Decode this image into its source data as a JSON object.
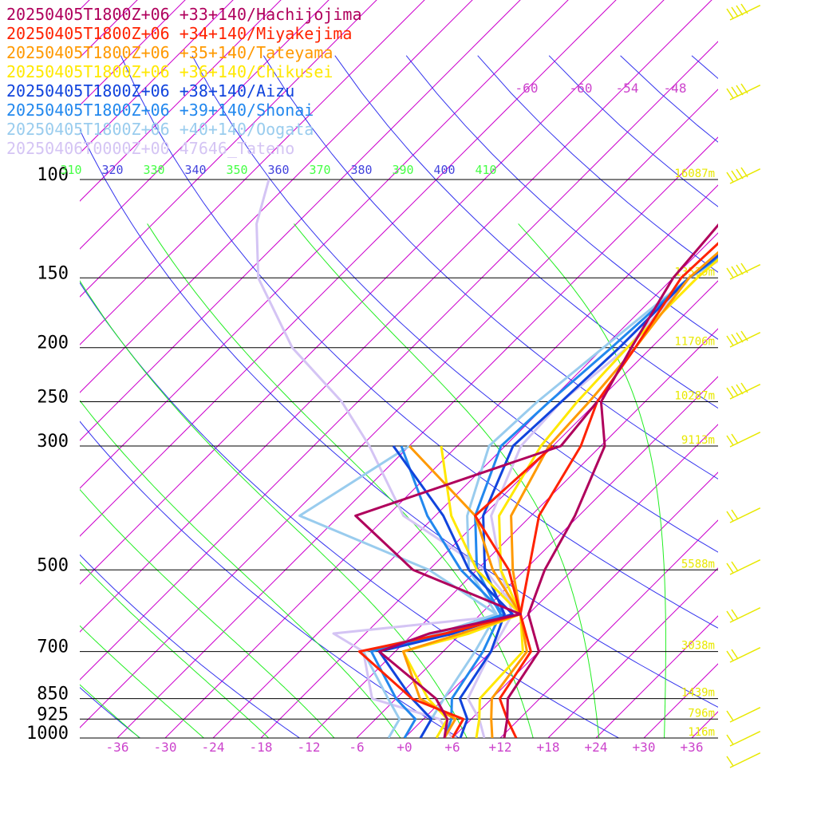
{
  "chart_data": {
    "type": "line",
    "title": "",
    "xlabel": "",
    "ylabel": "",
    "xlim": [
      -40,
      40
    ],
    "ylim": [
      1000,
      100
    ],
    "x_ticks": [
      "-36",
      "-30",
      "-24",
      "-18",
      "-12",
      "-6",
      "+0",
      "+6",
      "+12",
      "+18",
      "+24",
      "+30",
      "+36"
    ],
    "x_tick_values": [
      -36,
      -30,
      -24,
      -18,
      -12,
      -6,
      0,
      6,
      12,
      18,
      24,
      30,
      36
    ],
    "pressure_levels": [
      {
        "p": 100,
        "label": "100",
        "height": "16087m"
      },
      {
        "p": 150,
        "label": "150",
        "height": "13539m"
      },
      {
        "p": 200,
        "label": "200",
        "height": "11706m"
      },
      {
        "p": 250,
        "label": "250",
        "height": "10287m"
      },
      {
        "p": 300,
        "label": "300",
        "height": "9113m"
      },
      {
        "p": 500,
        "label": "500",
        "height": "5588m"
      },
      {
        "p": 700,
        "label": "700",
        "height": "3038m"
      },
      {
        "p": 850,
        "label": "850",
        "height": "1439m"
      },
      {
        "p": 925,
        "label": "925",
        "height": "796m"
      },
      {
        "p": 1000,
        "label": "1000",
        "height": "116m"
      }
    ],
    "upper_temp_labels": [
      "-60",
      "-60",
      "-54",
      "-48"
    ],
    "theta_labels": [
      {
        "t": "310",
        "c": "#44ff44"
      },
      {
        "t": "320",
        "c": "#4444dd"
      },
      {
        "t": "330",
        "c": "#44ff44"
      },
      {
        "t": "340",
        "c": "#4444dd"
      },
      {
        "t": "350",
        "c": "#44ff44"
      },
      {
        "t": "360",
        "c": "#4444dd"
      },
      {
        "t": "370",
        "c": "#44ff44"
      },
      {
        "t": "380",
        "c": "#4444dd"
      },
      {
        "t": "390",
        "c": "#44ff44"
      },
      {
        "t": "400",
        "c": "#4444dd"
      },
      {
        "t": "410",
        "c": "#44ff44"
      }
    ],
    "colors": {
      "isotherm": "#cc00cc",
      "dry_adiabat": "#3333ee",
      "moist_adiabat": "#22ee22",
      "isobar": "#000000",
      "height_label": "#e8e800",
      "tick_label": "#cc44cc",
      "wind_barb": "#e8e800"
    },
    "series": [
      {
        "name": "20250405T1800Z+06 +33+140/Hachijojima",
        "color": "#b0005c",
        "temp": [
          [
            1000,
            12.5
          ],
          [
            925,
            10.5
          ],
          [
            850,
            8
          ],
          [
            700,
            6
          ],
          [
            600,
            0
          ],
          [
            500,
            -3.5
          ],
          [
            400,
            -6.5
          ],
          [
            300,
            -11.5
          ],
          [
            250,
            -17.5
          ],
          [
            200,
            -20.5
          ],
          [
            150,
            -24
          ],
          [
            120,
            -25
          ],
          [
            100,
            -22
          ],
          [
            80,
            -16
          ],
          [
            60,
            -6
          ],
          [
            40,
            5
          ],
          [
            25,
            12
          ]
        ],
        "dew": [
          [
            1000,
            5
          ],
          [
            925,
            3
          ],
          [
            850,
            -1
          ],
          [
            700,
            -14
          ],
          [
            650,
            -10
          ],
          [
            600,
            -1
          ],
          [
            500,
            -20
          ],
          [
            400,
            -34
          ],
          [
            300,
            -17
          ],
          [
            250,
            -18
          ]
        ]
      },
      {
        "name": "20250405T1800Z+06 +34+140/Miyakejima",
        "color": "#ff2200",
        "temp": [
          [
            1000,
            14
          ],
          [
            925,
            10.5
          ],
          [
            850,
            7
          ],
          [
            700,
            5
          ],
          [
            600,
            -1
          ],
          [
            500,
            -5.5
          ],
          [
            400,
            -11
          ],
          [
            300,
            -14.5
          ],
          [
            250,
            -18
          ],
          [
            200,
            -20
          ],
          [
            150,
            -23
          ],
          [
            120,
            -22.5
          ],
          [
            100,
            -20
          ],
          [
            80,
            -13
          ],
          [
            60,
            -3
          ],
          [
            40,
            8
          ],
          [
            25,
            14
          ]
        ],
        "dew": [
          [
            1000,
            6
          ],
          [
            925,
            5
          ],
          [
            850,
            -4
          ],
          [
            700,
            -16.5
          ],
          [
            650,
            -8
          ],
          [
            600,
            -1
          ],
          [
            500,
            -8
          ],
          [
            400,
            -19
          ],
          [
            300,
            -18
          ]
        ]
      },
      {
        "name": "20250405T1800Z+06 +35+140/Tateyama",
        "color": "#ff9900",
        "temp": [
          [
            1000,
            11
          ],
          [
            925,
            8.5
          ],
          [
            850,
            6
          ],
          [
            700,
            4.5
          ],
          [
            600,
            -1
          ],
          [
            500,
            -7.5
          ],
          [
            400,
            -14.5
          ],
          [
            300,
            -18.5
          ],
          [
            250,
            -19
          ],
          [
            200,
            -20
          ],
          [
            150,
            -22
          ],
          [
            120,
            -21
          ],
          [
            100,
            -18
          ],
          [
            80,
            -11
          ],
          [
            60,
            -1
          ],
          [
            40,
            10
          ],
          [
            25,
            15
          ]
        ],
        "dew": [
          [
            1000,
            5
          ],
          [
            925,
            4
          ],
          [
            850,
            -3
          ],
          [
            700,
            -11
          ],
          [
            650,
            -6
          ],
          [
            600,
            -1
          ],
          [
            500,
            -10
          ],
          [
            400,
            -19
          ],
          [
            300,
            -36
          ]
        ]
      },
      {
        "name": "20250405T1800Z+06 +36+140/Chikusei",
        "color": "#ffe800",
        "temp": [
          [
            1000,
            9
          ],
          [
            925,
            7
          ],
          [
            850,
            4.5
          ],
          [
            700,
            4
          ],
          [
            600,
            -1
          ],
          [
            500,
            -9
          ],
          [
            400,
            -16
          ],
          [
            300,
            -19.5
          ],
          [
            250,
            -20.5
          ],
          [
            200,
            -21
          ],
          [
            150,
            -21
          ],
          [
            120,
            -20
          ],
          [
            100,
            -17
          ],
          [
            80,
            -9
          ],
          [
            60,
            1
          ],
          [
            40,
            12
          ],
          [
            25,
            16
          ]
        ],
        "dew": [
          [
            1000,
            4
          ],
          [
            925,
            3
          ],
          [
            850,
            -2
          ],
          [
            700,
            -11
          ],
          [
            650,
            -5
          ],
          [
            600,
            -1
          ],
          [
            500,
            -12
          ],
          [
            400,
            -22
          ],
          [
            300,
            -32
          ]
        ]
      },
      {
        "name": "20250405T1800Z+06 +38+140/Aizu",
        "color": "#1144dd",
        "temp": [
          [
            1000,
            7
          ],
          [
            925,
            5.5
          ],
          [
            850,
            2
          ],
          [
            700,
            0
          ],
          [
            600,
            -3
          ],
          [
            500,
            -11
          ],
          [
            400,
            -18
          ],
          [
            300,
            -23
          ],
          [
            250,
            -22.5
          ],
          [
            200,
            -22
          ],
          [
            150,
            -22
          ],
          [
            120,
            -20
          ],
          [
            100,
            -17
          ],
          [
            80,
            -8
          ],
          [
            60,
            2
          ],
          [
            40,
            13
          ],
          [
            25,
            17
          ]
        ],
        "dew": [
          [
            1000,
            2
          ],
          [
            925,
            1
          ],
          [
            850,
            -4
          ],
          [
            700,
            -14
          ],
          [
            650,
            -7
          ],
          [
            600,
            -2
          ],
          [
            500,
            -13
          ],
          [
            400,
            -23
          ],
          [
            300,
            -38
          ]
        ]
      },
      {
        "name": "20250405T1800Z+06 +39+140/Shonai",
        "color": "#2288ee",
        "temp": [
          [
            1000,
            5
          ],
          [
            925,
            3.5
          ],
          [
            850,
            1
          ],
          [
            700,
            -1
          ],
          [
            600,
            -3.5
          ],
          [
            500,
            -12
          ],
          [
            400,
            -19
          ],
          [
            300,
            -24.5
          ],
          [
            250,
            -24
          ],
          [
            200,
            -23
          ],
          [
            150,
            -22
          ],
          [
            120,
            -19
          ],
          [
            100,
            -16
          ],
          [
            80,
            -7
          ],
          [
            60,
            3
          ],
          [
            40,
            14
          ],
          [
            25,
            18
          ]
        ],
        "dew": [
          [
            1000,
            0
          ],
          [
            925,
            -1
          ],
          [
            850,
            -6
          ],
          [
            700,
            -15
          ],
          [
            650,
            -8
          ],
          [
            600,
            -3
          ],
          [
            500,
            -14
          ],
          [
            400,
            -25
          ],
          [
            300,
            -37
          ]
        ]
      },
      {
        "name": "20250405T1800Z+06 +40+140/Oogata",
        "color": "#99ccee",
        "temp": [
          [
            1000,
            2
          ],
          [
            925,
            1
          ],
          [
            850,
            0
          ],
          [
            700,
            -2
          ],
          [
            600,
            -4
          ],
          [
            500,
            -13
          ],
          [
            400,
            -20
          ],
          [
            300,
            -26
          ],
          [
            250,
            -25.5
          ],
          [
            200,
            -24
          ],
          [
            150,
            -22
          ],
          [
            120,
            -18
          ],
          [
            100,
            -14
          ],
          [
            80,
            -5
          ],
          [
            60,
            5
          ],
          [
            40,
            16
          ],
          [
            25,
            19
          ]
        ],
        "dew": [
          [
            1000,
            -2
          ],
          [
            925,
            -3
          ],
          [
            850,
            -7
          ],
          [
            700,
            -16
          ],
          [
            650,
            -9
          ],
          [
            600,
            -4
          ],
          [
            500,
            -18
          ],
          [
            400,
            -41
          ],
          [
            300,
            -36
          ]
        ]
      },
      {
        "name": "20250406T0000Z+00 47646_Tateno",
        "color": "#d4c4f4",
        "temp": [
          [
            1000,
            10
          ],
          [
            925,
            7
          ],
          [
            850,
            3
          ],
          [
            700,
            0
          ],
          [
            600,
            -2
          ],
          [
            500,
            -9
          ],
          [
            400,
            -17
          ],
          [
            300,
            -22
          ],
          [
            250,
            -22.5
          ],
          [
            200,
            -21
          ],
          [
            150,
            -22
          ],
          [
            120,
            -17
          ],
          [
            100,
            -13
          ]
        ],
        "dew": [
          [
            1000,
            6
          ],
          [
            925,
            2
          ],
          [
            850,
            -9
          ],
          [
            700,
            -16
          ],
          [
            650,
            -22
          ],
          [
            600,
            -1
          ],
          [
            500,
            -11
          ],
          [
            400,
            -28
          ],
          [
            300,
            -41
          ],
          [
            250,
            -50
          ],
          [
            200,
            -63
          ],
          [
            150,
            -76
          ],
          [
            120,
            -83
          ],
          [
            100,
            -87
          ]
        ]
      }
    ]
  }
}
